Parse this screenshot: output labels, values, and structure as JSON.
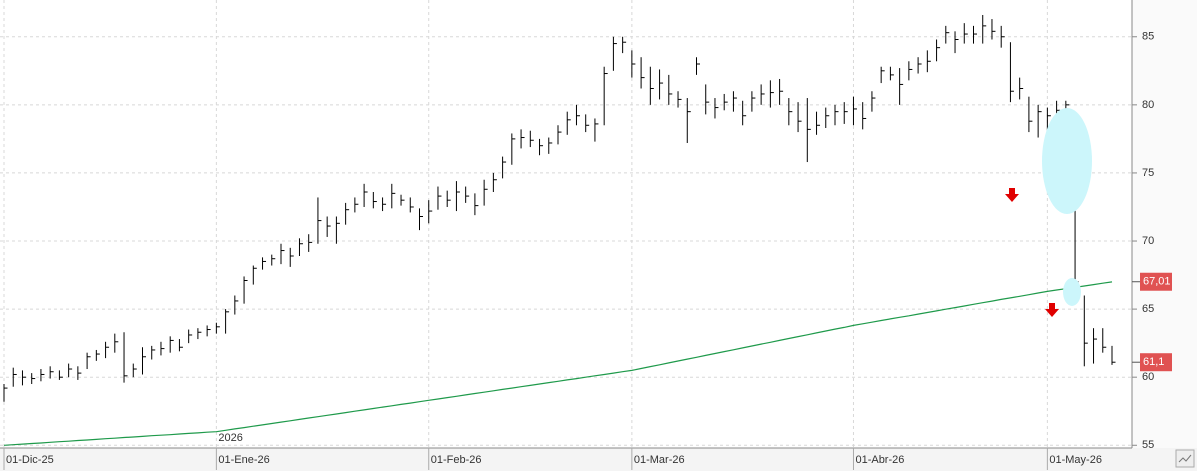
{
  "chart_data": {
    "type": "ohlc",
    "categories": [
      "01-Dic-25",
      null,
      null,
      null,
      null,
      null,
      null,
      null,
      null,
      null,
      null,
      null,
      null,
      null,
      null,
      null,
      null,
      null,
      null,
      null,
      null,
      null,
      null,
      "01-Ene-26",
      null,
      null,
      null,
      null,
      null,
      null,
      null,
      null,
      null,
      null,
      null,
      null,
      null,
      null,
      null,
      null,
      null,
      null,
      null,
      null,
      null,
      null,
      "01-Feb-26",
      null,
      null,
      null,
      null,
      null,
      null,
      null,
      null,
      null,
      null,
      null,
      null,
      null,
      null,
      null,
      null,
      null,
      null,
      null,
      null,
      null,
      "01-Mar-26",
      null,
      null,
      null,
      null,
      null,
      null,
      null,
      null,
      null,
      null,
      null,
      null,
      null,
      null,
      null,
      null,
      null,
      null,
      null,
      null,
      null,
      null,
      null,
      "01-Abr-26",
      null,
      null,
      null,
      null,
      null,
      null,
      null,
      null,
      null,
      null,
      null,
      null,
      null,
      null,
      null,
      null,
      null,
      null,
      null,
      null,
      "01-May-26",
      null,
      null,
      null,
      null,
      null,
      null,
      null
    ],
    "high": [
      59.5,
      60.7,
      60.5,
      60.3,
      60.6,
      60.8,
      60.5,
      61,
      60.8,
      61.8,
      62,
      62.6,
      63.2,
      63.3,
      61,
      62.2,
      62.3,
      62.6,
      63,
      62.8,
      63.5,
      63.6,
      63.8,
      64,
      65,
      66,
      67.4,
      68.2,
      68.8,
      69,
      69.8,
      69.5,
      70.2,
      70.5,
      73.2,
      71.8,
      71.8,
      72.8,
      73.2,
      74.2,
      73.6,
      73.2,
      74.2,
      73.4,
      73.2,
      72.4,
      73,
      74,
      73.7,
      74.4,
      74,
      73.5,
      74.5,
      75,
      76.2,
      77.9,
      78.2,
      78.1,
      77.5,
      77.6,
      78.5,
      79.5,
      80,
      79.3,
      79,
      82.8,
      85,
      85,
      84,
      83.5,
      82.8,
      82.6,
      82.2,
      81,
      80.5,
      83.5,
      81.5,
      80.5,
      80.8,
      81,
      80.3,
      81,
      81.5,
      81.8,
      81.9,
      80.5,
      80.2,
      80.5,
      79.5,
      79.8,
      80,
      80.2,
      80.6,
      80.2,
      81,
      82.8,
      82.8,
      82.7,
      83.2,
      83.5,
      84,
      84.8,
      85.8,
      85.4,
      86,
      85.8,
      86.6,
      86.3,
      85.8,
      84.6,
      82,
      80.6,
      80,
      79.8,
      80.3,
      80.3,
      72.3,
      66,
      63.6,
      63.6,
      62.3
    ],
    "low": [
      58.2,
      59.3,
      59.4,
      59.5,
      59.7,
      59.9,
      59.8,
      60,
      59.8,
      60.6,
      61.2,
      61.4,
      61.8,
      59.6,
      60,
      60.2,
      61.3,
      61.6,
      61.8,
      61.9,
      62.5,
      62.8,
      63,
      63.2,
      63.2,
      64.6,
      65.4,
      66.8,
      67.9,
      68.2,
      68.3,
      68.1,
      68.9,
      69.2,
      69.8,
      70.3,
      69.8,
      71.2,
      72.1,
      72.5,
      72.4,
      72.2,
      72.4,
      72.6,
      72.1,
      70.8,
      71.3,
      72.3,
      72.5,
      72.2,
      72.8,
      71.9,
      72.6,
      73.6,
      74.6,
      75.6,
      76.8,
      76.9,
      76.3,
      76.4,
      77.1,
      77.8,
      78.5,
      78,
      77.3,
      78.5,
      82.5,
      83.8,
      82,
      81.2,
      80,
      80.4,
      80,
      79.8,
      77.2,
      82.2,
      79.3,
      79,
      79.6,
      79.5,
      78.5,
      79.5,
      80,
      79.8,
      80,
      78.5,
      78,
      75.8,
      77.8,
      78.3,
      78.5,
      78.6,
      78.5,
      78.2,
      79.5,
      81.6,
      81.8,
      80,
      81.8,
      82.3,
      82.4,
      83.2,
      84.5,
      83.8,
      84.5,
      84.5,
      84.5,
      84.8,
      84.2,
      80.2,
      80.4,
      78,
      77.6,
      78,
      78.6,
      79.2,
      66.8,
      60.8,
      61,
      61.8,
      60.9
    ],
    "close": [
      59.2,
      60.2,
      60,
      59.9,
      60.2,
      60.4,
      60,
      60.6,
      60.3,
      61.5,
      61.7,
      62.2,
      62.6,
      60.1,
      60.6,
      61.5,
      62,
      62.1,
      62.7,
      62.2,
      63.1,
      63.3,
      63.5,
      63.7,
      64.8,
      65.6,
      67.1,
      68,
      68.5,
      68.7,
      69.3,
      68.9,
      69.8,
      69.9,
      71.5,
      71.1,
      71.3,
      72.3,
      72.7,
      73.6,
      72.9,
      72.7,
      73.5,
      73,
      72.5,
      71.8,
      72.2,
      73.3,
      73,
      73.6,
      73.3,
      72.6,
      73.8,
      74.5,
      75.8,
      77.5,
      77.6,
      77.4,
      77,
      77.2,
      78,
      78.9,
      79.2,
      78.5,
      78.6,
      82.3,
      84.5,
      84.6,
      83,
      82,
      81.2,
      81.6,
      80.8,
      80.4,
      79.5,
      83,
      80.2,
      79.8,
      80.2,
      80.5,
      79.2,
      80.5,
      80.8,
      80.9,
      81,
      79.5,
      78.8,
      78.2,
      78.5,
      79.2,
      79.5,
      79.5,
      79.7,
      79,
      80.5,
      82.5,
      82.2,
      81.5,
      82.6,
      83,
      83.2,
      84.2,
      85.3,
      84.8,
      85.2,
      85.2,
      85.8,
      85.4,
      85,
      81,
      81.2,
      78.8,
      79.5,
      79.2,
      79.6,
      80,
      67,
      62.5,
      62.8,
      62.2,
      61.1
    ],
    "color": "#000000",
    "moving_average": {
      "color": "#1f9a4b",
      "values": [
        55.0,
        55.04,
        55.09,
        55.13,
        55.17,
        55.22,
        55.26,
        55.3,
        55.35,
        55.39,
        55.43,
        55.48,
        55.52,
        55.57,
        55.61,
        55.65,
        55.7,
        55.74,
        55.78,
        55.83,
        55.87,
        55.91,
        55.96,
        56.0,
        56.1,
        56.2,
        56.3,
        56.4,
        56.5,
        56.6,
        56.7,
        56.8,
        56.9,
        57.0,
        57.1,
        57.2,
        57.3,
        57.4,
        57.5,
        57.6,
        57.7,
        57.8,
        57.9,
        58.0,
        58.1,
        58.2,
        58.3,
        58.4,
        58.5,
        58.6,
        58.7,
        58.8,
        58.9,
        59.0,
        59.1,
        59.2,
        59.3,
        59.4,
        59.5,
        59.6,
        59.7,
        59.8,
        59.9,
        60.0,
        60.1,
        60.2,
        60.3,
        60.4,
        60.5,
        60.64,
        60.78,
        60.91,
        61.05,
        61.19,
        61.33,
        61.46,
        61.6,
        61.74,
        61.88,
        62.01,
        62.15,
        62.29,
        62.43,
        62.56,
        62.7,
        62.84,
        62.98,
        63.11,
        63.25,
        63.39,
        63.53,
        63.66,
        63.8,
        63.92,
        64.04,
        64.16,
        64.28,
        64.4,
        64.51,
        64.63,
        64.75,
        64.87,
        64.99,
        65.11,
        65.23,
        65.35,
        65.47,
        65.59,
        65.71,
        65.82,
        65.94,
        66.06,
        66.18,
        66.3,
        66.4,
        66.5,
        66.6,
        66.7,
        66.8,
        66.9,
        67.0
      ]
    },
    "year_label": "2026",
    "price_labels": [
      {
        "value": 67.01,
        "label": "67,01"
      },
      {
        "value": 61.1,
        "label": "61,1"
      }
    ],
    "price_label_color": "#e05252",
    "ylim": [
      54.8,
      87.7
    ],
    "yticks": [
      55,
      60,
      65,
      70,
      75,
      80,
      85
    ],
    "grid": true
  }
}
